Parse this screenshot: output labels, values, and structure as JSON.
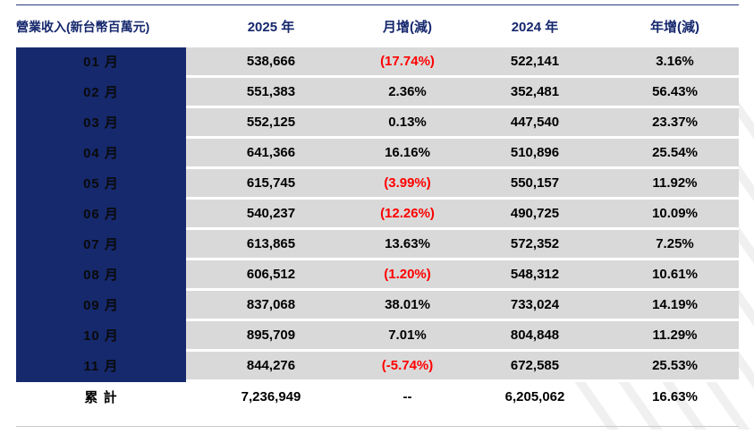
{
  "colors": {
    "navy": "#16296d",
    "header_text": "#16286d",
    "row_bg": "#d9d9d9",
    "negative": "#ff0000",
    "text": "#000000"
  },
  "table": {
    "headers": [
      "營業收入(新台幣百萬元)",
      "2025 年",
      "月增(減)",
      "2024 年",
      "年增(減)"
    ],
    "rows": [
      {
        "month": "01 月",
        "y2025": "538,666",
        "mom": "(17.74%)",
        "y2024": "522,141",
        "yoy": "3.16%"
      },
      {
        "month": "02 月",
        "y2025": "551,383",
        "mom": "2.36%",
        "y2024": "352,481",
        "yoy": "56.43%"
      },
      {
        "month": "03 月",
        "y2025": "552,125",
        "mom": "0.13%",
        "y2024": "447,540",
        "yoy": "23.37%"
      },
      {
        "month": "04 月",
        "y2025": "641,366",
        "mom": "16.16%",
        "y2024": "510,896",
        "yoy": "25.54%"
      },
      {
        "month": "05 月",
        "y2025": "615,745",
        "mom": "(3.99%)",
        "y2024": "550,157",
        "yoy": "11.92%"
      },
      {
        "month": "06 月",
        "y2025": "540,237",
        "mom": "(12.26%)",
        "y2024": "490,725",
        "yoy": "10.09%"
      },
      {
        "month": "07 月",
        "y2025": "613,865",
        "mom": "13.63%",
        "y2024": "572,352",
        "yoy": "7.25%"
      },
      {
        "month": "08 月",
        "y2025": "606,512",
        "mom": "(1.20%)",
        "y2024": "548,312",
        "yoy": "10.61%"
      },
      {
        "month": "09 月",
        "y2025": "837,068",
        "mom": "38.01%",
        "y2024": "733,024",
        "yoy": "14.19%"
      },
      {
        "month": "10 月",
        "y2025": "895,709",
        "mom": "7.01%",
        "y2024": "804,848",
        "yoy": "11.29%"
      },
      {
        "month": "11 月",
        "y2025": "844,276",
        "mom": "(-5.74%)",
        "y2024": "672,585",
        "yoy": "25.53%"
      }
    ],
    "total": {
      "label": "累 計",
      "y2025": "7,236,949",
      "mom": "--",
      "y2024": "6,205,062",
      "yoy": "16.63%"
    }
  },
  "chart_data": {
    "type": "table",
    "title": "營業收入(新台幣百萬元)",
    "columns": [
      "營業收入(新台幣百萬元)",
      "2025 年",
      "月增(減)",
      "2024 年",
      "年增(減)"
    ],
    "categories": [
      "01 月",
      "02 月",
      "03 月",
      "04 月",
      "05 月",
      "06 月",
      "07 月",
      "08 月",
      "09 月",
      "10 月",
      "11 月"
    ],
    "series": [
      {
        "name": "2025 年",
        "values": [
          538666,
          551383,
          552125,
          641366,
          615745,
          540237,
          613865,
          606512,
          837068,
          895709,
          844276
        ]
      },
      {
        "name": "月增(減) %",
        "values": [
          -17.74,
          2.36,
          0.13,
          16.16,
          -3.99,
          -12.26,
          13.63,
          -1.2,
          38.01,
          7.01,
          -5.74
        ]
      },
      {
        "name": "2024 年",
        "values": [
          522141,
          352481,
          447540,
          510896,
          550157,
          490725,
          572352,
          548312,
          733024,
          804848,
          672585
        ]
      },
      {
        "name": "年增(減) %",
        "values": [
          3.16,
          56.43,
          23.37,
          25.54,
          11.92,
          10.09,
          7.25,
          10.61,
          14.19,
          11.29,
          25.53
        ]
      }
    ],
    "totals": {
      "y2025_cumulative": 7236949,
      "y2024_cumulative": 6205062,
      "yoy_percent": 16.63
    }
  }
}
